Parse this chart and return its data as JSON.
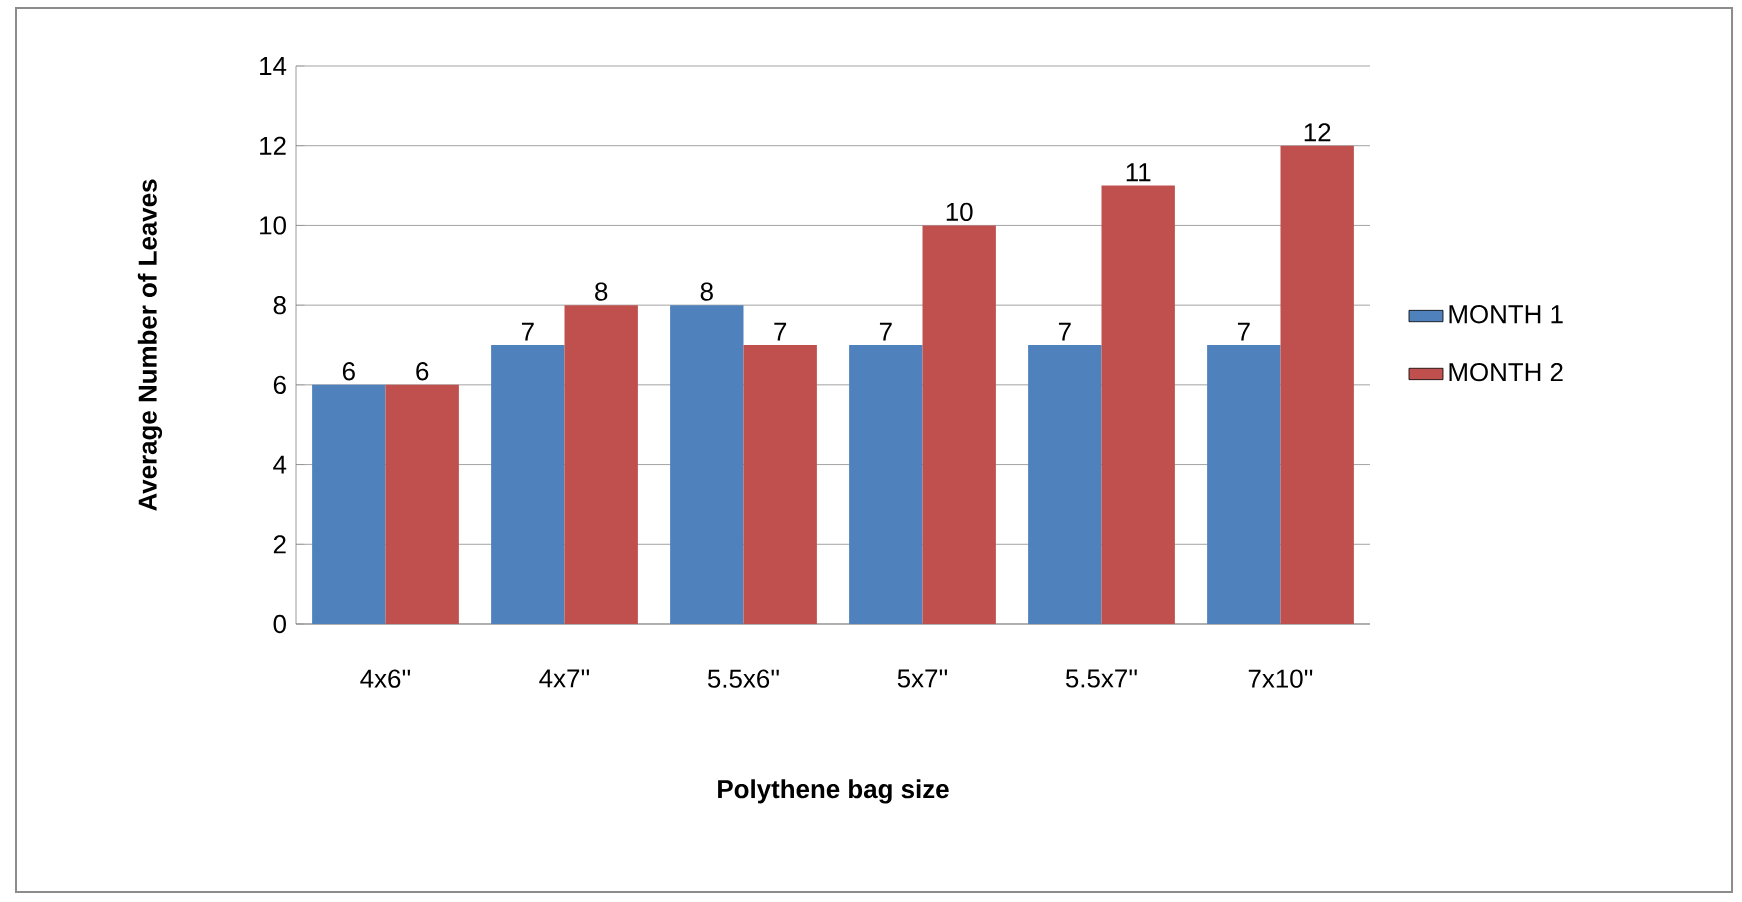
{
  "chart_data": {
    "type": "bar",
    "xlabel": "Polythene bag size",
    "ylabel": "Average Number of Leaves",
    "categories": [
      "4x6''",
      "4x7''",
      "5.5x6''",
      "5x7''",
      "5.5x7''",
      "7x10''"
    ],
    "series": [
      {
        "name": "MONTH 1",
        "color": "#4f81bd",
        "values": [
          6,
          7,
          8,
          7,
          7,
          7
        ]
      },
      {
        "name": "MONTH 2",
        "color": "#c0504d",
        "values": [
          6,
          8,
          7,
          10,
          11,
          12
        ]
      }
    ],
    "ylim": [
      0,
      14
    ],
    "yticks": [
      0,
      2,
      4,
      6,
      8,
      10,
      12,
      14
    ],
    "grid": "y",
    "legend": "right",
    "data_labels": true
  }
}
